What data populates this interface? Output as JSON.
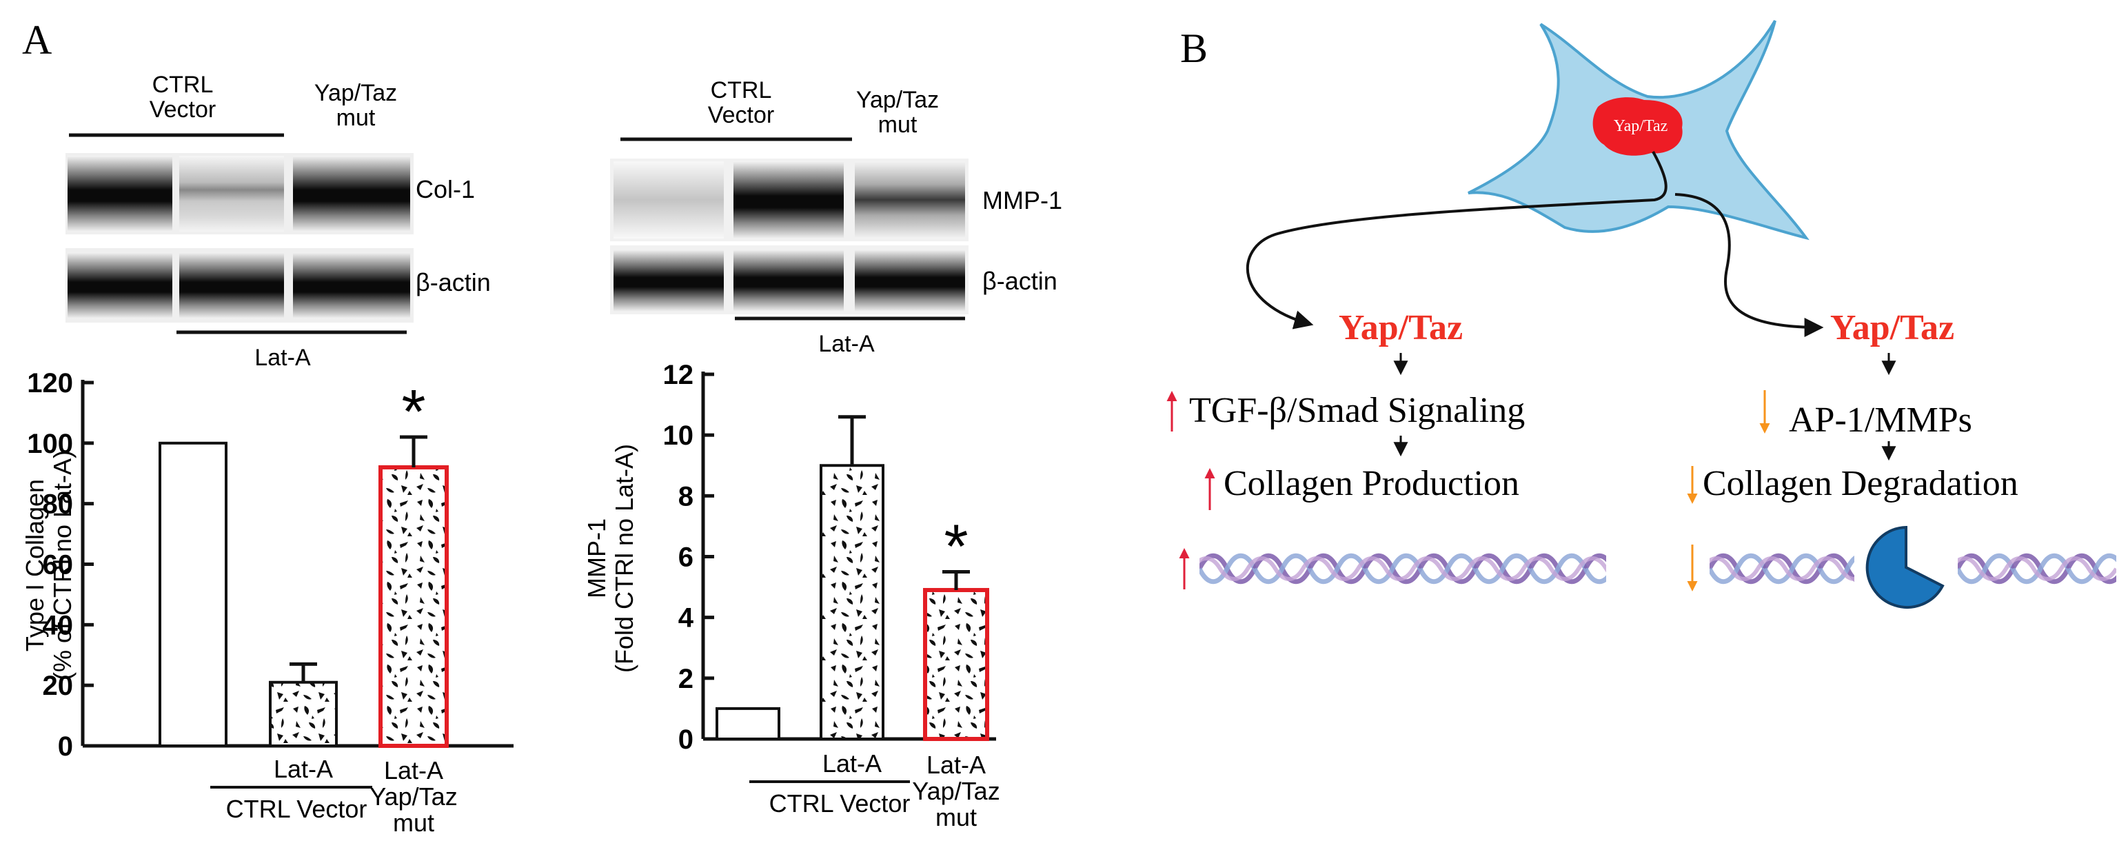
{
  "panel_a": {
    "label": "A",
    "col1": {
      "header_ctrl": "CTRL\nVector",
      "header_mut": "Yap/Taz\nmut",
      "band_labels": [
        "Col-1",
        "β-actin"
      ],
      "lat_a": "Lat-A"
    },
    "col2": {
      "header_ctrl": "CTRL\nVector",
      "header_mut": "Yap/Taz\nmut",
      "band_labels": [
        "MMP-1",
        "β-actin"
      ],
      "lat_a": "Lat-A"
    }
  },
  "panel_b": {
    "label": "B",
    "nucleus_label": "Yap/Taz",
    "left": {
      "title": "Yap/Taz",
      "line1": "TGF-β/Smad Signaling",
      "line2": "Collagen Production"
    },
    "right": {
      "title": "Yap/Taz",
      "line1": "AP-1/MMPs",
      "line2": "Collagen Degradation"
    }
  },
  "colors": {
    "red_text": "#ee3124",
    "up_arrow": "#e0213b",
    "down_arrow": "#f7941d",
    "cell_fill": "#a9d6ec",
    "cell_stroke": "#4ca3cf",
    "pacman": "#1b75bb",
    "mut_outline": "#e31e24"
  },
  "chart_data": [
    {
      "type": "bar",
      "ylabel": "Type I Collagen\n(% of CTRl no Lat-A)",
      "ylim": [
        0,
        120
      ],
      "yticks": [
        0,
        20,
        40,
        60,
        80,
        100,
        120
      ],
      "categories": [
        "",
        "Lat-A",
        "Lat-A\nYap/Taz\nmut"
      ],
      "values": [
        100,
        21,
        92
      ],
      "errors": [
        0,
        6,
        10
      ],
      "patterns": [
        "open",
        "hatched",
        "hatched-red"
      ],
      "significance": [
        "",
        "",
        "*"
      ],
      "group_label": "CTRL Vector"
    },
    {
      "type": "bar",
      "ylabel": "MMP-1\n(Fold CTRl no Lat-A)",
      "ylim": [
        0,
        12
      ],
      "yticks": [
        0,
        2,
        4,
        6,
        8,
        10,
        12
      ],
      "categories": [
        "",
        "Lat-A",
        "Lat-A\nYap/Taz\nmut"
      ],
      "values": [
        1,
        9,
        4.9
      ],
      "errors": [
        0,
        1.6,
        0.6
      ],
      "patterns": [
        "open",
        "hatched",
        "hatched-red"
      ],
      "significance": [
        "",
        "",
        "*"
      ],
      "group_label": "CTRL Vector"
    }
  ]
}
